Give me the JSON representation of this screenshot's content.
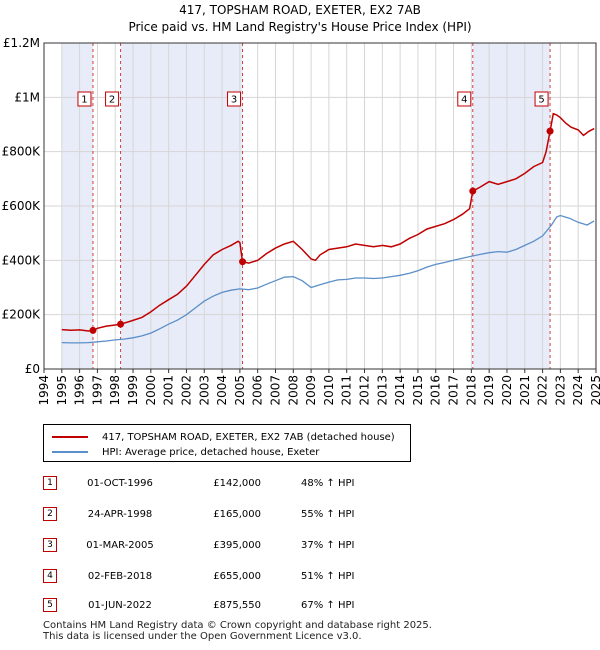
{
  "title_line1": "417, TOPSHAM ROAD, EXETER, EX2 7AB",
  "title_line2": "Price paid vs. HM Land Registry's House Price Index (HPI)",
  "legend": {
    "property_label": "417, TOPSHAM ROAD, EXETER, EX2 7AB (detached house)",
    "hpi_label": "HPI: Average price, detached house, Exeter"
  },
  "sales": [
    {
      "num": "1",
      "date": "01-OCT-1996",
      "price": "£142,000",
      "hpi": "48% ↑ HPI"
    },
    {
      "num": "2",
      "date": "24-APR-1998",
      "price": "£165,000",
      "hpi": "55% ↑ HPI"
    },
    {
      "num": "3",
      "date": "01-MAR-2005",
      "price": "£395,000",
      "hpi": "37% ↑ HPI"
    },
    {
      "num": "4",
      "date": "02-FEB-2018",
      "price": "£655,000",
      "hpi": "51% ↑ HPI"
    },
    {
      "num": "5",
      "date": "01-JUN-2022",
      "price": "£875,550",
      "hpi": "67% ↑ HPI"
    }
  ],
  "footer": {
    "line1": "Contains HM Land Registry data © Crown copyright and database right 2025.",
    "line2": "This data is licensed under the Open Government Licence v3.0."
  },
  "colors": {
    "property_line": "#c00000",
    "hpi_line": "#5b8fc9",
    "shade": "#e8ecf8",
    "grid": "#d6d6d6"
  },
  "chart_data": {
    "type": "line",
    "x_range": [
      1994,
      2025
    ],
    "ylim": [
      0,
      1200000
    ],
    "y_ticks": [
      0,
      200000,
      400000,
      600000,
      800000,
      1000000,
      1200000
    ],
    "y_tick_labels": [
      "£0",
      "£200K",
      "£400K",
      "£600K",
      "£800K",
      "£1M",
      "£1.2M"
    ],
    "x_ticks": [
      1994,
      1995,
      1996,
      1997,
      1998,
      1999,
      2000,
      2001,
      2002,
      2003,
      2004,
      2005,
      2006,
      2007,
      2008,
      2009,
      2010,
      2011,
      2012,
      2013,
      2014,
      2015,
      2016,
      2017,
      2018,
      2019,
      2020,
      2021,
      2022,
      2023,
      2024,
      2025
    ],
    "x_tick_labels": [
      "1994",
      "1995",
      "1996",
      "1997",
      "1998",
      "1999",
      "2000",
      "2001",
      "2002",
      "2003",
      "2004",
      "2005",
      "2006",
      "2007",
      "2008",
      "2009",
      "2010",
      "2011",
      "2012",
      "2013",
      "2014",
      "2015",
      "2016",
      "2017",
      "2018",
      "2019",
      "2020",
      "2021",
      "2022",
      "2023",
      "2024",
      "2025"
    ],
    "grid": true,
    "shaded_ranges": [
      [
        1995.0,
        1996.75
      ],
      [
        1998.3,
        2005.15
      ],
      [
        2018.08,
        2022.42
      ],
      [
        2024.95,
        2025.0
      ]
    ],
    "sale_markers": [
      {
        "label": "1",
        "x": 1996.75,
        "y": 142000
      },
      {
        "label": "2",
        "x": 1998.3,
        "y": 165000
      },
      {
        "label": "3",
        "x": 2005.15,
        "y": 395000
      },
      {
        "label": "4",
        "x": 2018.08,
        "y": 655000
      },
      {
        "label": "5",
        "x": 2022.42,
        "y": 875550
      }
    ],
    "series": [
      {
        "name": "417, TOPSHAM ROAD, EXETER, EX2 7AB (detached house)",
        "x": [
          1995.0,
          1995.5,
          1996.0,
          1996.5,
          1996.75,
          1997.0,
          1997.5,
          1998.0,
          1998.3,
          1998.8,
          1999.5,
          2000.0,
          2000.5,
          2001.0,
          2001.5,
          2002.0,
          2002.5,
          2003.0,
          2003.5,
          2004.0,
          2004.5,
          2004.9,
          2005.0,
          2005.15,
          2005.5,
          2006.0,
          2006.5,
          2007.0,
          2007.5,
          2008.0,
          2008.5,
          2009.0,
          2009.25,
          2009.5,
          2010.0,
          2010.5,
          2011.0,
          2011.5,
          2012.0,
          2012.5,
          2013.0,
          2013.5,
          2014.0,
          2014.5,
          2015.0,
          2015.5,
          2016.0,
          2016.5,
          2017.0,
          2017.5,
          2017.9,
          2018.08,
          2018.5,
          2019.0,
          2019.5,
          2020.0,
          2020.5,
          2021.0,
          2021.5,
          2022.0,
          2022.2,
          2022.42,
          2022.6,
          2022.8,
          2023.0,
          2023.3,
          2023.6,
          2024.0,
          2024.3,
          2024.6,
          2024.9
        ],
        "y": [
          145000,
          143000,
          144000,
          140000,
          142000,
          150000,
          158000,
          162000,
          165000,
          175000,
          190000,
          210000,
          235000,
          255000,
          275000,
          305000,
          345000,
          385000,
          420000,
          440000,
          455000,
          470000,
          465000,
          395000,
          390000,
          400000,
          425000,
          445000,
          460000,
          470000,
          440000,
          405000,
          400000,
          420000,
          440000,
          445000,
          450000,
          460000,
          455000,
          450000,
          455000,
          450000,
          460000,
          480000,
          495000,
          515000,
          525000,
          535000,
          550000,
          570000,
          590000,
          655000,
          670000,
          690000,
          680000,
          690000,
          700000,
          720000,
          745000,
          760000,
          800000,
          875550,
          940000,
          935000,
          925000,
          905000,
          890000,
          880000,
          860000,
          875000,
          885000
        ]
      },
      {
        "name": "HPI: Average price, detached house, Exeter",
        "x": [
          1995.0,
          1995.5,
          1996.0,
          1996.5,
          1997.0,
          1997.5,
          1998.0,
          1998.5,
          1999.0,
          1999.5,
          2000.0,
          2000.5,
          2001.0,
          2001.5,
          2002.0,
          2002.5,
          2003.0,
          2003.5,
          2004.0,
          2004.5,
          2005.0,
          2005.5,
          2006.0,
          2006.5,
          2007.0,
          2007.5,
          2008.0,
          2008.5,
          2009.0,
          2009.5,
          2010.0,
          2010.5,
          2011.0,
          2011.5,
          2012.0,
          2012.5,
          2013.0,
          2013.5,
          2014.0,
          2014.5,
          2015.0,
          2015.5,
          2016.0,
          2016.5,
          2017.0,
          2017.5,
          2018.0,
          2018.5,
          2019.0,
          2019.5,
          2020.0,
          2020.5,
          2021.0,
          2021.5,
          2022.0,
          2022.5,
          2022.8,
          2023.0,
          2023.5,
          2024.0,
          2024.5,
          2024.9
        ],
        "y": [
          97000,
          96000,
          96000,
          97000,
          100000,
          103000,
          107000,
          110000,
          115000,
          122000,
          132000,
          148000,
          165000,
          180000,
          200000,
          225000,
          250000,
          268000,
          282000,
          290000,
          295000,
          292000,
          298000,
          312000,
          325000,
          338000,
          340000,
          325000,
          300000,
          310000,
          320000,
          328000,
          330000,
          335000,
          335000,
          333000,
          335000,
          340000,
          345000,
          352000,
          362000,
          375000,
          385000,
          392000,
          400000,
          408000,
          415000,
          422000,
          428000,
          432000,
          430000,
          440000,
          455000,
          470000,
          490000,
          530000,
          560000,
          565000,
          555000,
          540000,
          530000,
          545000
        ]
      }
    ]
  }
}
